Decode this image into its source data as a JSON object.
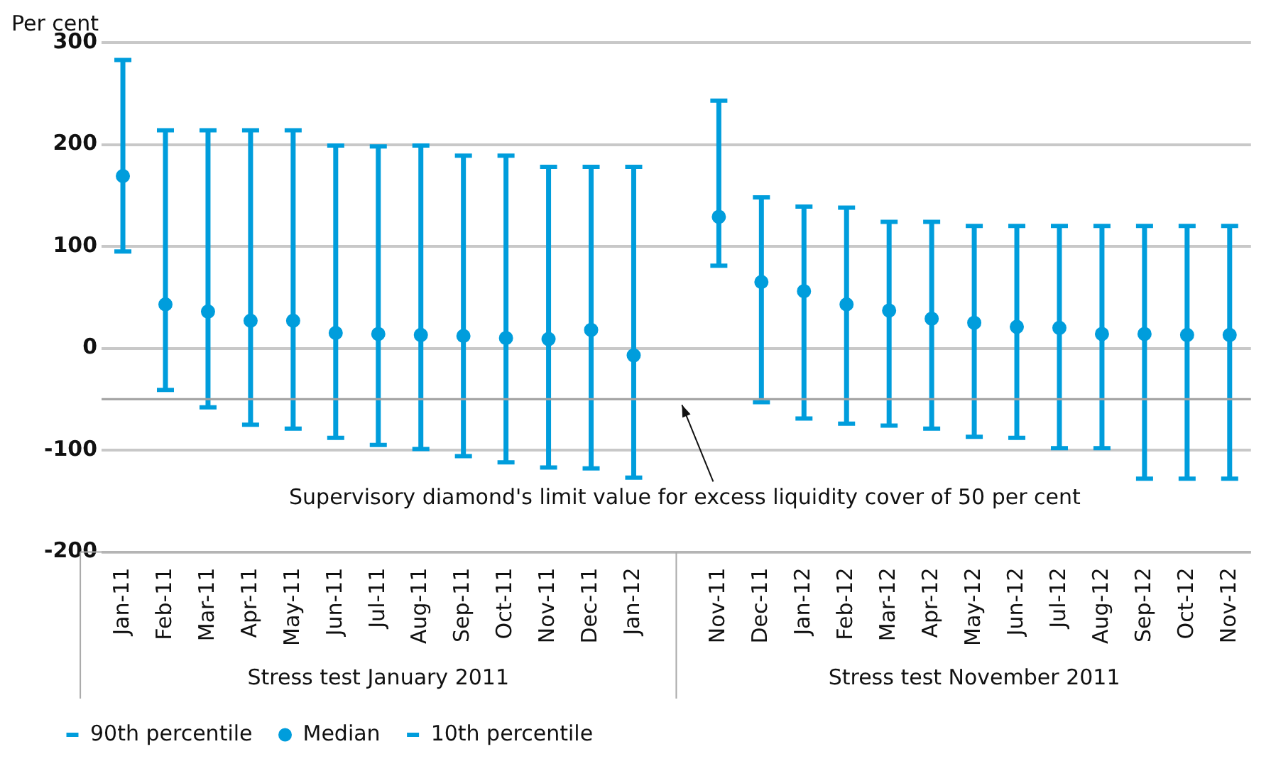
{
  "chart_data": {
    "type": "scatter",
    "ylabel": "Per cent",
    "categories": [
      "Jan-11",
      "Feb-11",
      "Mar-11",
      "Apr-11",
      "May-11",
      "Jun-11",
      "Jul-11",
      "Aug-11",
      "Sep-11",
      "Oct-11",
      "Nov-11",
      "Dec-11",
      "Jan-12",
      null,
      "Nov-11",
      "Dec-11",
      "Jan-12",
      "Feb-12",
      "Mar-12",
      "Apr-12",
      "May-12",
      "Jun-12",
      "Jul-12",
      "Aug-12",
      "Sep-12",
      "Oct-12",
      "Nov-12"
    ],
    "series": [
      {
        "name": "Median",
        "color": "#009ddc",
        "marker": "circle",
        "values": [
          169,
          43,
          36,
          27,
          27,
          15,
          14,
          13,
          12,
          10,
          9,
          18,
          -7,
          null,
          129,
          65,
          56,
          43,
          37,
          29,
          25,
          21,
          20,
          14,
          14,
          13,
          13
        ],
        "errors": [
          [
            95,
            283
          ],
          [
            -41,
            214
          ],
          [
            -58,
            214
          ],
          [
            -75,
            214
          ],
          [
            -79,
            214
          ],
          [
            -88,
            199
          ],
          [
            -95,
            198
          ],
          [
            -99,
            199
          ],
          [
            -106,
            189
          ],
          [
            -112,
            189
          ],
          [
            -117,
            178
          ],
          [
            -118,
            178
          ],
          [
            -127,
            178
          ],
          null,
          [
            81,
            243
          ],
          [
            -53,
            148
          ],
          [
            -69,
            139
          ],
          [
            -74,
            138
          ],
          [
            -76,
            124
          ],
          [
            -79,
            124
          ],
          [
            -87,
            120
          ],
          [
            -88,
            120
          ],
          [
            -98,
            120
          ],
          [
            -98,
            120
          ],
          [
            -128,
            120
          ],
          [
            -128,
            120
          ],
          [
            -128,
            120
          ]
        ]
      }
    ],
    "ylim": [
      -200,
      300
    ],
    "yticks": [
      -200,
      -100,
      0,
      100,
      200,
      300
    ],
    "grid": "y",
    "legend": "bottom left",
    "ref_lines": [
      {
        "axis": "y",
        "value": -50,
        "label": "Supervisory diamond's limit value for excess liquidity cover of 50 per cent",
        "color": "#a0a0a0"
      }
    ],
    "annotations": [
      "Stress test January 2011",
      "Stress test November 2011",
      "90th percentile",
      "10th percentile"
    ]
  }
}
